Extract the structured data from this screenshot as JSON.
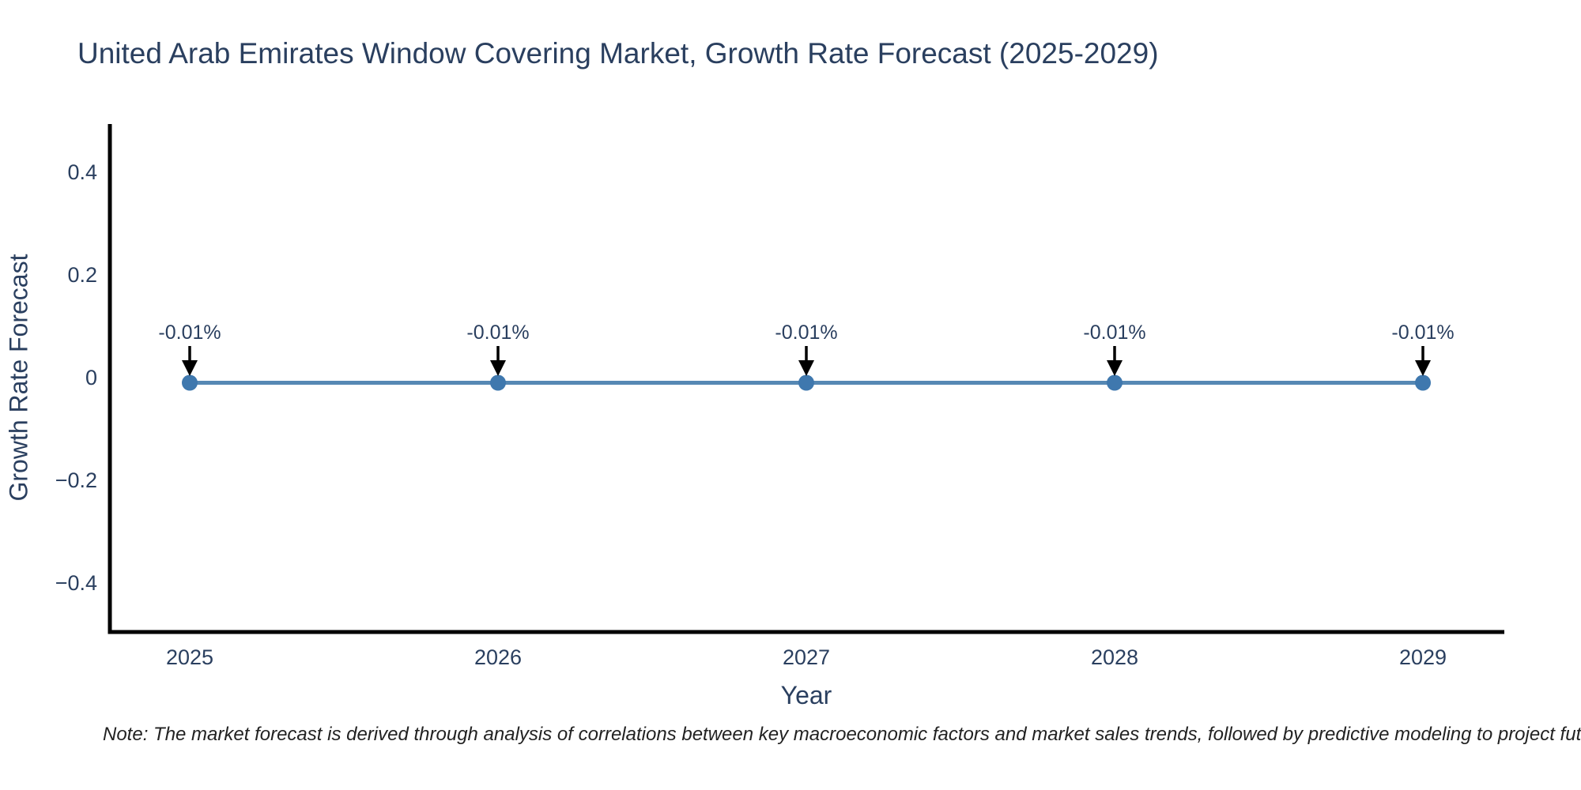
{
  "page": {
    "title": "United Arab Emirates Window Covering Market, Growth Rate Forecast (2025-2029)",
    "note": "Note: The market forecast is derived through analysis of correlations between key macroeconomic factors and market sales trends, followed by predictive modeling to project future sales"
  },
  "chart_data": {
    "type": "line",
    "title": "United Arab Emirates Window Covering Market, Growth Rate Forecast (2025-2029)",
    "xlabel": "Year",
    "ylabel": "Growth Rate Forecast",
    "categories": [
      "2025",
      "2026",
      "2027",
      "2028",
      "2029"
    ],
    "series": [
      {
        "name": "Growth Rate Forecast",
        "values": [
          -0.01,
          -0.01,
          -0.01,
          -0.01,
          -0.01
        ]
      }
    ],
    "point_labels": [
      "-0.01%",
      "-0.01%",
      "-0.01%",
      "-0.01%",
      "-0.01%"
    ],
    "yticks": [
      {
        "value": 0.4,
        "label": "0.4"
      },
      {
        "value": 0.2,
        "label": "0.2"
      },
      {
        "value": 0,
        "label": "0"
      },
      {
        "value": -0.2,
        "label": "−0.2"
      },
      {
        "value": -0.4,
        "label": "−0.4"
      }
    ],
    "ylim": [
      -0.5,
      0.5
    ],
    "grid": false,
    "legend_position": "none",
    "annotations_have_arrows": true,
    "colors": {
      "line": "#5688b4",
      "marker": "#3f78ae",
      "axis": "#000000",
      "text": "#2a3f5f",
      "arrow": "#000000",
      "note_text": "#222222"
    }
  }
}
